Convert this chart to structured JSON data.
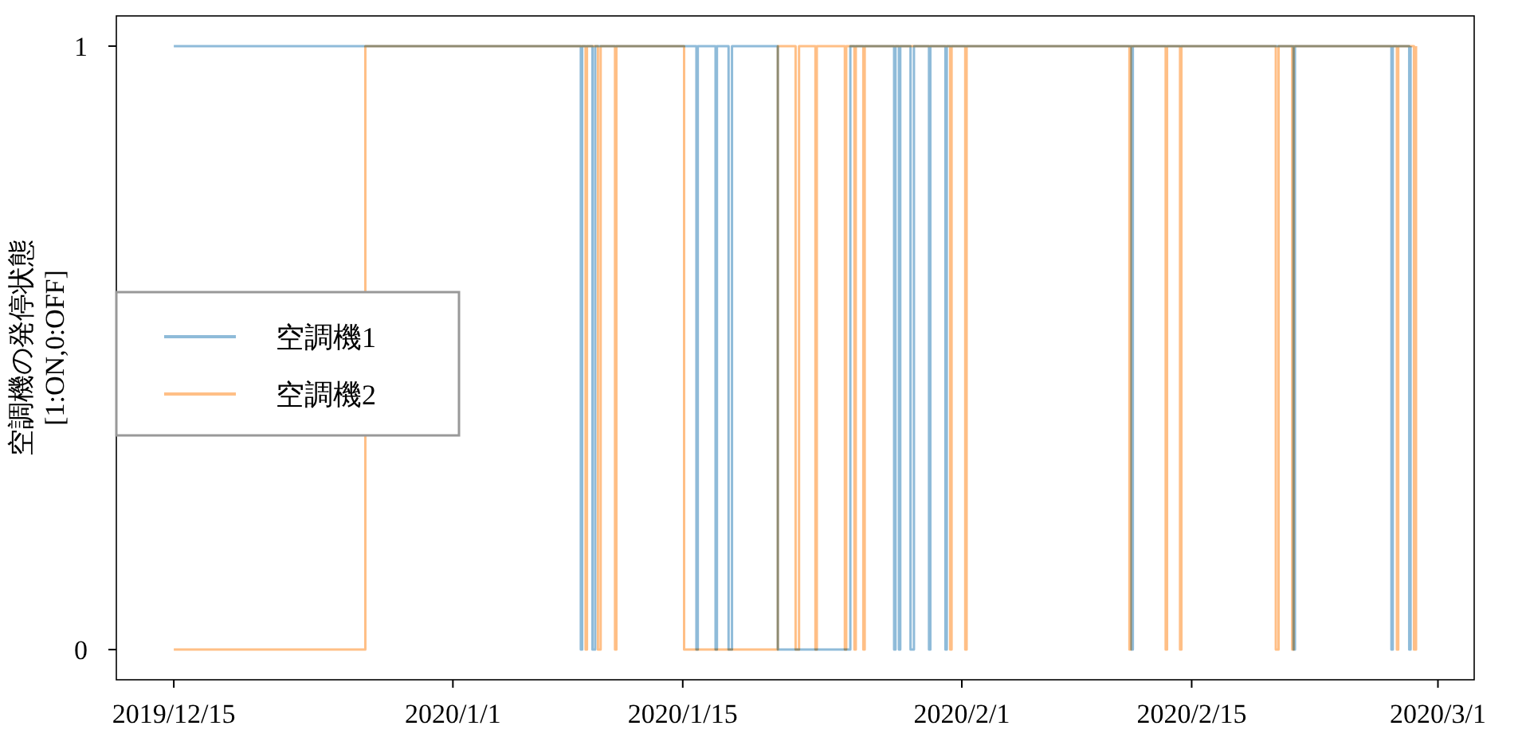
{
  "chart_data": {
    "type": "step",
    "ylabel": "空調機の発停状態\n[1:ON,0:OFF]",
    "xlim": [
      "2019-12-11T12:00",
      "2020-03-03T05:00"
    ],
    "ylim": [
      -0.05,
      1.05
    ],
    "xticks": [
      {
        "value": "2019-12-15",
        "label": "2019/12/15"
      },
      {
        "value": "2020-01-01",
        "label": "2020/1/1"
      },
      {
        "value": "2020-01-15",
        "label": "2020/1/15"
      },
      {
        "value": "2020-02-01",
        "label": "2020/2/1"
      },
      {
        "value": "2020-02-15",
        "label": "2020/2/15"
      },
      {
        "value": "2020-03-01",
        "label": "2020/3/1"
      }
    ],
    "yticks": [
      0,
      1
    ],
    "grid": false,
    "legend": "left",
    "line_style": "solid",
    "marker": "none",
    "series": [
      {
        "name": "空調機1",
        "color": "#8fbbd9",
        "x": [
          "2019-12-15T00:00",
          "2020-01-08T19:00",
          "2020-01-08T21:00",
          "2020-01-09T12:00",
          "2020-01-09T16:00",
          "2020-01-15T20:00",
          "2020-01-15T22:00",
          "2020-01-17T00:00",
          "2020-01-17T02:00",
          "2020-01-17T19:00",
          "2020-01-18T00:00",
          "2020-01-20T19:00",
          "2020-01-25T05:00",
          "2020-01-27T21:00",
          "2020-01-27T23:00",
          "2020-01-28T04:00",
          "2020-01-28T06:00",
          "2020-01-28T21:00",
          "2020-01-29T02:00",
          "2020-01-30T00:00",
          "2020-01-30T02:00",
          "2020-01-31T00:00",
          "2020-01-31T02:00",
          "2020-02-11T08:00",
          "2020-02-11T10:00",
          "2020-02-21T05:00",
          "2020-02-21T07:00",
          "2020-02-27T04:00",
          "2020-02-27T06:00",
          "2020-02-28T06:00",
          "2020-02-28T08:00"
        ],
        "values": [
          1,
          0,
          1,
          0,
          1,
          0,
          1,
          0,
          1,
          0,
          1,
          0,
          1,
          0,
          1,
          0,
          1,
          0,
          1,
          0,
          1,
          0,
          1,
          0,
          1,
          0,
          1,
          0,
          1,
          0,
          1
        ]
      },
      {
        "name": "空調機2",
        "color": "#ffbf86",
        "x": [
          "2019-12-15T00:00",
          "2019-12-26T16:00",
          "2020-01-09T02:00",
          "2020-01-09T04:00",
          "2020-01-09T20:00",
          "2020-01-10T00:00",
          "2020-01-10T21:00",
          "2020-01-10T23:00",
          "2020-01-15T02:00",
          "2020-01-20T19:00",
          "2020-01-21T21:00",
          "2020-01-22T02:00",
          "2020-01-23T02:00",
          "2020-01-23T04:00",
          "2020-01-24T21:00",
          "2020-01-24T23:00",
          "2020-01-25T11:00",
          "2020-01-25T13:00",
          "2020-01-26T00:00",
          "2020-01-26T02:00",
          "2020-01-31T07:00",
          "2020-01-31T09:00",
          "2020-02-01T05:00",
          "2020-02-01T07:00",
          "2020-02-11T05:00",
          "2020-02-11T07:00",
          "2020-02-13T10:00",
          "2020-02-13T12:00",
          "2020-02-14T07:00",
          "2020-02-14T09:00",
          "2020-02-20T03:00",
          "2020-02-20T07:00",
          "2020-02-21T03:00",
          "2020-02-21T05:00",
          "2020-02-27T12:00",
          "2020-02-27T14:00",
          "2020-02-28T13:00",
          "2020-02-28T16:00"
        ],
        "values": [
          0,
          1,
          0,
          1,
          0,
          1,
          0,
          1,
          0,
          1,
          0,
          1,
          0,
          1,
          0,
          1,
          0,
          1,
          0,
          1,
          0,
          1,
          0,
          1,
          0,
          1,
          0,
          1,
          0,
          1,
          0,
          1,
          0,
          1,
          0,
          1,
          0,
          1
        ]
      }
    ]
  }
}
